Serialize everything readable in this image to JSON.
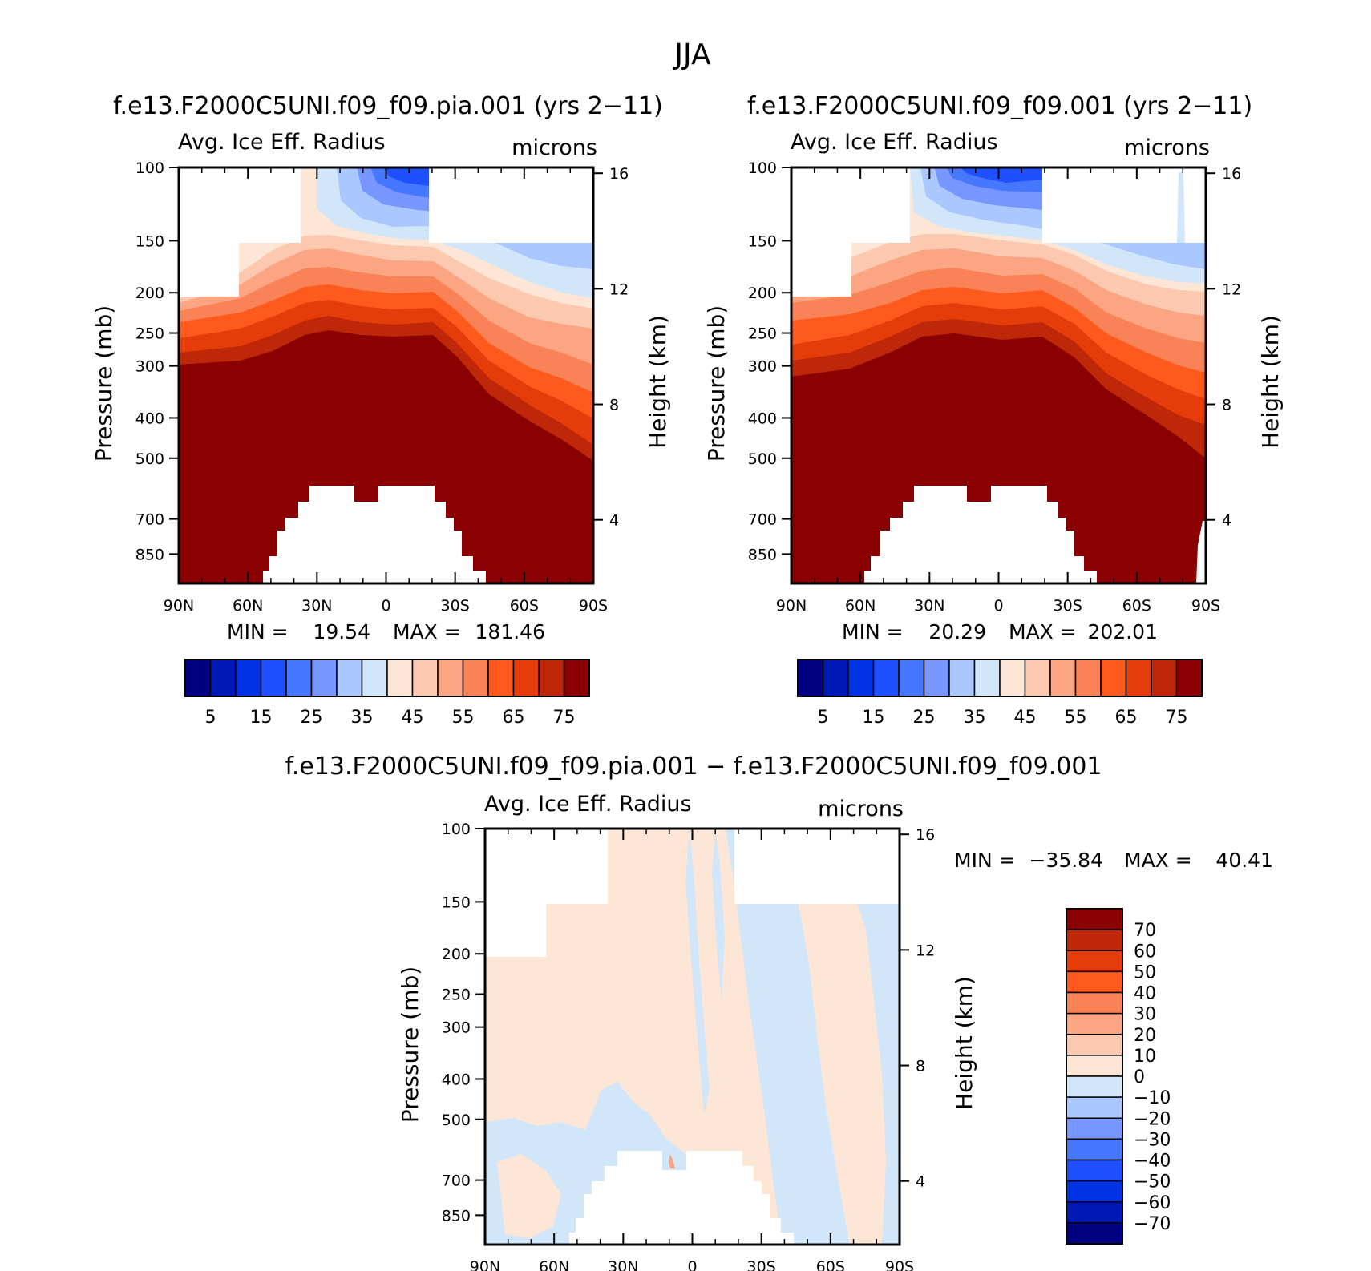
{
  "page": {
    "title": "JJA"
  },
  "chart_data": [
    {
      "type": "heatmap",
      "title": "f.e13.F2000C5UNI.f09_f09.pia.001 (yrs 2−11)",
      "subtitle_left": "Avg. Ice Eff. Radius",
      "subtitle_right": "microns",
      "xlabel": "",
      "ylabel": "Pressure (mb)",
      "ylabel_right": "Height (km)",
      "x_ticks": [
        "90N",
        "60N",
        "30N",
        "0",
        "30S",
        "60S",
        "90S"
      ],
      "y_ticks": [
        "100",
        "150",
        "200",
        "250",
        "300",
        "400",
        "500",
        "700",
        "850"
      ],
      "y_ticks_right": [
        "16",
        "12",
        "8",
        "4"
      ],
      "stats": {
        "min_label": "MIN =",
        "min": "19.54",
        "max_label": "MAX =",
        "max": "181.46"
      },
      "colorbar_labels": [
        "5",
        "15",
        "25",
        "35",
        "45",
        "55",
        "65",
        "75"
      ],
      "colors": [
        "#000080",
        "#0019b4",
        "#0032e6",
        "#1e50ff",
        "#4678ff",
        "#7896ff",
        "#aac8ff",
        "#d2e6fa",
        "#fde6d6",
        "#fcc8b0",
        "#fba582",
        "#f98256",
        "#ff5a1e",
        "#e63c0a",
        "#be2808",
        "#8b0000"
      ]
    },
    {
      "type": "heatmap",
      "title": "f.e13.F2000C5UNI.f09_f09.001 (yrs 2−11)",
      "subtitle_left": "Avg. Ice Eff. Radius",
      "subtitle_right": "microns",
      "xlabel": "",
      "ylabel": "Pressure (mb)",
      "ylabel_right": "Height (km)",
      "x_ticks": [
        "90N",
        "60N",
        "30N",
        "0",
        "30S",
        "60S",
        "90S"
      ],
      "y_ticks": [
        "100",
        "150",
        "200",
        "250",
        "300",
        "400",
        "500",
        "700",
        "850"
      ],
      "y_ticks_right": [
        "16",
        "12",
        "8",
        "4"
      ],
      "stats": {
        "min_label": "MIN =",
        "min": "20.29",
        "max_label": "MAX =",
        "max": "202.01"
      },
      "colorbar_labels": [
        "5",
        "15",
        "25",
        "35",
        "45",
        "55",
        "65",
        "75"
      ],
      "colors": [
        "#000080",
        "#0019b4",
        "#0032e6",
        "#1e50ff",
        "#4678ff",
        "#7896ff",
        "#aac8ff",
        "#d2e6fa",
        "#fde6d6",
        "#fcc8b0",
        "#fba582",
        "#f98256",
        "#ff5a1e",
        "#e63c0a",
        "#be2808",
        "#8b0000"
      ]
    },
    {
      "type": "heatmap",
      "title": "f.e13.F2000C5UNI.f09_f09.pia.001 − f.e13.F2000C5UNI.f09_f09.001",
      "subtitle_left": "Avg. Ice Eff. Radius",
      "subtitle_right": "microns",
      "xlabel": "",
      "ylabel": "Pressure (mb)",
      "ylabel_right": "Height (km)",
      "x_ticks": [
        "90N",
        "60N",
        "30N",
        "0",
        "30S",
        "60S",
        "90S"
      ],
      "y_ticks": [
        "100",
        "150",
        "200",
        "250",
        "300",
        "400",
        "500",
        "700",
        "850"
      ],
      "y_ticks_right": [
        "16",
        "12",
        "8",
        "4"
      ],
      "stats": {
        "min_label": "MIN =",
        "min": "−35.84",
        "max_label": "MAX =",
        "max": "40.41"
      },
      "colorbar_labels": [
        "70",
        "60",
        "50",
        "40",
        "30",
        "20",
        "10",
        "0",
        "−10",
        "−20",
        "−30",
        "−40",
        "−50",
        "−60",
        "−70"
      ],
      "colors": [
        "#8b0000",
        "#be2808",
        "#e63c0a",
        "#ff5a1e",
        "#f98256",
        "#fba582",
        "#fcc8b0",
        "#fde6d6",
        "#d2e6fa",
        "#aac8ff",
        "#7896ff",
        "#4678ff",
        "#1e50ff",
        "#0032e6",
        "#0019b4",
        "#000080"
      ]
    }
  ]
}
